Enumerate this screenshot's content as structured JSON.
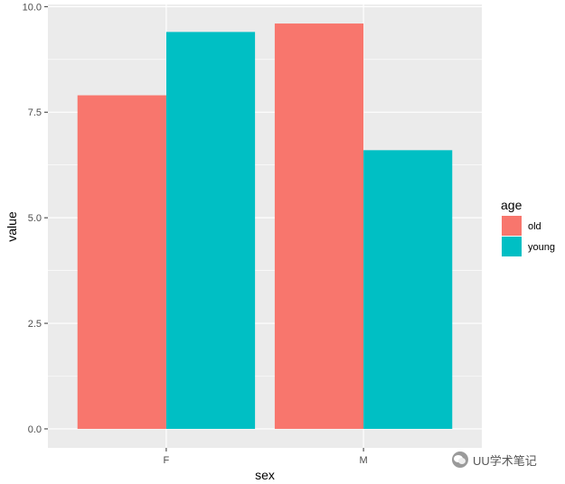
{
  "chart_data": {
    "type": "bar",
    "xlabel": "sex",
    "ylabel": "value",
    "categories": [
      "F",
      "M"
    ],
    "series": [
      {
        "name": "old",
        "color": "#F8766D",
        "values": [
          7.9,
          9.6
        ]
      },
      {
        "name": "young",
        "color": "#00BFC4",
        "values": [
          9.4,
          6.6
        ]
      }
    ],
    "ylim": [
      -0.45,
      10.05
    ],
    "yticks": [
      0.0,
      2.5,
      5.0,
      7.5,
      10.0
    ],
    "ytick_labels": [
      "0.0",
      "2.5",
      "5.0",
      "7.5",
      "10.0"
    ],
    "legend_title": "age",
    "legend_position": "right",
    "grid": true,
    "panel_background": "#EBEBEB",
    "gridline_color": "#FFFFFF"
  },
  "watermark": {
    "icon": "wechat-icon",
    "text": "UU学术笔记"
  }
}
